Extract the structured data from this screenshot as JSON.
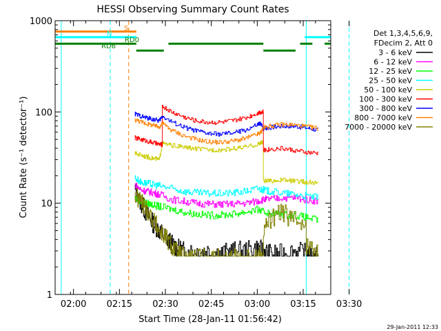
{
  "chart_data": {
    "type": "line",
    "title": "HESSI Observing Summary Count Rates",
    "ylabel": "Count Rate (s⁻¹ detector⁻¹)",
    "xlabel": "Start Time (28-Jan-11 01:56:42)",
    "footer": "29-Jan-2011 12:33",
    "y_scale": "log",
    "ylim": [
      1,
      1000
    ],
    "x_range_minutes": [
      -2,
      88
    ],
    "y_ticks": [
      {
        "value": 1,
        "label": "1"
      },
      {
        "value": 10,
        "label": "10"
      },
      {
        "value": 100,
        "label": "100"
      },
      {
        "value": 1000,
        "label": "1000"
      }
    ],
    "x_ticks": [
      {
        "minute": 4,
        "label": "02:00"
      },
      {
        "minute": 19,
        "label": "02:15"
      },
      {
        "minute": 34,
        "label": "02:30"
      },
      {
        "minute": 49,
        "label": "02:45"
      },
      {
        "minute": 64,
        "label": "03:00"
      },
      {
        "minute": 79,
        "label": "03:15"
      },
      {
        "minute": 94,
        "label": "03:30"
      }
    ],
    "legend_header": [
      "Det 1,3,4,5,6,9,",
      "FDecim 2, Att 0"
    ],
    "series": [
      {
        "name": "3 - 6 keV",
        "color": "#000000",
        "x": [
          24,
          26,
          28,
          30,
          32,
          34,
          36,
          38,
          40,
          44,
          48,
          52,
          56,
          60,
          64,
          66,
          68,
          72,
          76,
          80,
          82,
          84
        ],
        "y": [
          14,
          10,
          7.5,
          6,
          5,
          4.2,
          3.6,
          3.2,
          3,
          3,
          3,
          2.8,
          3,
          3,
          3.2,
          3,
          2.8,
          2.8,
          3,
          2.8,
          2.6,
          2.6
        ]
      },
      {
        "name": "6 - 12 keV",
        "color": "#ff00ff",
        "x": [
          24,
          26,
          28,
          30,
          32,
          36,
          40,
          44,
          48,
          52,
          56,
          60,
          64,
          66,
          68,
          72,
          76,
          80,
          84
        ],
        "y": [
          16,
          14,
          13.5,
          13,
          12.5,
          11,
          10.5,
          10,
          9.8,
          9.7,
          9.8,
          10,
          10.5,
          11,
          11,
          11.5,
          11.5,
          11,
          10.5
        ]
      },
      {
        "name": "12 - 25 keV",
        "color": "#00ff00",
        "x": [
          24,
          26,
          28,
          30,
          32,
          36,
          40,
          44,
          48,
          52,
          56,
          60,
          64,
          66,
          68,
          72,
          76,
          80,
          84
        ],
        "y": [
          11.5,
          10.5,
          10,
          9.6,
          9.2,
          8.6,
          8,
          7.6,
          7.4,
          7.4,
          7.6,
          8,
          8.5,
          8,
          7.8,
          7.6,
          7.4,
          7,
          6.5
        ]
      },
      {
        "name": "25 - 50 keV",
        "color": "#00ffff",
        "x": [
          24,
          26,
          28,
          30,
          32,
          36,
          40,
          44,
          48,
          52,
          56,
          60,
          64,
          66,
          68,
          72,
          76,
          80,
          84
        ],
        "y": [
          19,
          17,
          16.5,
          16,
          15.5,
          14.5,
          13.5,
          13,
          12.8,
          12.8,
          13,
          13.5,
          14.5,
          14,
          13.5,
          13,
          12.5,
          12,
          11.5
        ]
      },
      {
        "name": "50 - 100 keV",
        "color": "#cccc00",
        "x": [
          24,
          26,
          28,
          30,
          32,
          33,
          36,
          40,
          44,
          48,
          52,
          56,
          60,
          64,
          65,
          66,
          68,
          72,
          76,
          80,
          84
        ],
        "y": [
          35,
          34,
          32,
          31,
          30,
          45,
          43,
          41,
          39.5,
          38.5,
          38.5,
          39.5,
          41,
          44,
          46,
          17.5,
          17.5,
          18,
          17.5,
          17,
          16.5
        ]
      },
      {
        "name": "100 - 300 keV",
        "color": "#ff0000",
        "x": [
          24,
          26,
          28,
          30,
          32,
          33,
          36,
          40,
          44,
          48,
          52,
          56,
          60,
          64,
          65,
          66,
          68,
          72,
          76,
          80,
          84
        ],
        "y": [
          52,
          50,
          48,
          46,
          44,
          115,
          100,
          88,
          80,
          77,
          77,
          80,
          86,
          97,
          100,
          38,
          39,
          40,
          38,
          36,
          35
        ]
      },
      {
        "name": "300 - 800 keV",
        "color": "#0000ff",
        "x": [
          24,
          26,
          28,
          30,
          32,
          33,
          36,
          40,
          44,
          48,
          52,
          56,
          60,
          64,
          65,
          66,
          68,
          72,
          76,
          80,
          84
        ],
        "y": [
          95,
          90,
          86,
          83,
          80,
          90,
          78,
          68,
          62,
          58,
          57,
          59,
          63,
          72,
          75,
          66,
          68,
          70,
          70,
          67,
          63
        ]
      },
      {
        "name": "800 - 7000 keV",
        "color": "#ff8000",
        "x": [
          24,
          26,
          28,
          30,
          32,
          33,
          36,
          40,
          44,
          48,
          52,
          56,
          60,
          64,
          65,
          66,
          68,
          72,
          76,
          80,
          84
        ],
        "y": [
          82,
          78,
          74,
          71,
          68,
          75,
          63,
          55,
          50,
          47,
          46.5,
          48,
          51,
          57,
          59,
          67,
          70,
          73,
          72,
          69,
          66
        ]
      },
      {
        "name": "7000 - 20000 keV",
        "color": "#808000",
        "x": [
          24,
          26,
          28,
          30,
          32,
          34,
          36,
          38,
          40,
          44,
          48,
          52,
          56,
          60,
          64,
          66,
          68,
          72,
          76,
          80,
          84
        ],
        "y": [
          12,
          10.5,
          8.5,
          6.5,
          5,
          4.2,
          3.4,
          2.8,
          2.6,
          2.5,
          2.5,
          2.5,
          2.6,
          2.5,
          2.7,
          5,
          6.5,
          8,
          6.5,
          3.5,
          2.6
        ]
      }
    ],
    "annotations": [
      {
        "text": "S",
        "color": "#ff8000"
      },
      {
        "text": "N",
        "color": "#00ffff"
      },
      {
        "text": "RD0",
        "color": "#008000"
      },
      {
        "text": "RD6",
        "color": "#008000"
      }
    ],
    "flag_bars": [
      {
        "name": "S",
        "color": "#ff8000",
        "y": 760,
        "segments": [
          [
            -2,
            24.5
          ]
        ]
      },
      {
        "name": "N",
        "color": "#00ffff",
        "y": 660,
        "segments": [
          [
            -2,
            24.5
          ],
          [
            79.5,
            88
          ]
        ]
      },
      {
        "name": "RD0",
        "color": "#008000",
        "y": 560,
        "segments": [
          [
            -2,
            24.5
          ],
          [
            35,
            66
          ],
          [
            78,
            82
          ],
          [
            86,
            88
          ]
        ]
      },
      {
        "name": "RD6",
        "color": "#008000",
        "y": 470,
        "segments": [
          [
            24.5,
            33.5
          ],
          [
            66,
            76.5
          ]
        ]
      }
    ],
    "vlines": [
      {
        "minute": 0,
        "color": "#00ffff",
        "dash": false
      },
      {
        "minute": 16,
        "color": "#00ffff",
        "dash": true
      },
      {
        "minute": 22,
        "color": "#ff8000",
        "dash": true
      },
      {
        "minute": 80,
        "color": "#00ffff",
        "dash": false
      },
      {
        "minute": 94,
        "color": "#00ffff",
        "dash": true
      }
    ]
  }
}
